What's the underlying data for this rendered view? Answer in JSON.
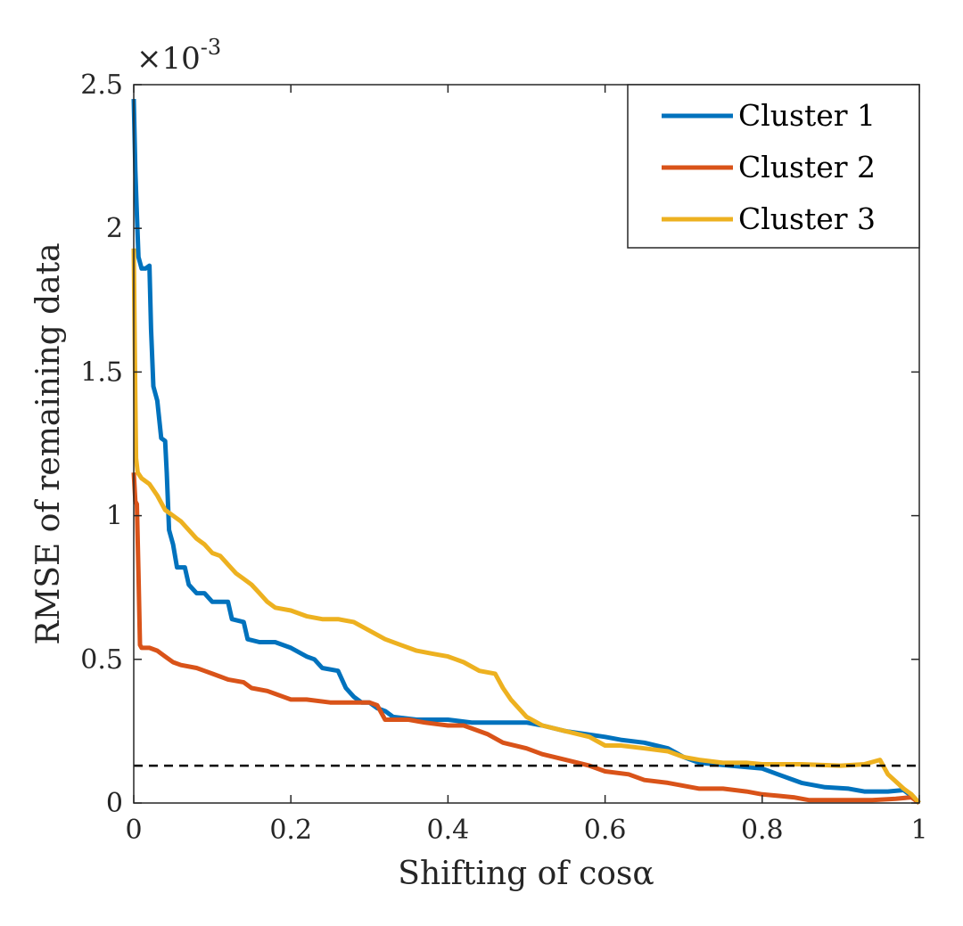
{
  "chart_data": {
    "type": "line",
    "title": "",
    "xlabel": "Shifting of cosα",
    "ylabel": "RMSE of remaining data",
    "y_scale_multiplier": "×10",
    "y_scale_exponent": "-3",
    "xlim": [
      0,
      1
    ],
    "ylim": [
      0,
      2.5
    ],
    "x_ticks": [
      0,
      0.2,
      0.4,
      0.6,
      0.8,
      1
    ],
    "x_tick_labels": [
      "0",
      "0.2",
      "0.4",
      "0.6",
      "0.8",
      "1"
    ],
    "y_ticks": [
      0,
      0.5,
      1,
      1.5,
      2,
      2.5
    ],
    "y_tick_labels": [
      "0",
      "0.5",
      "1",
      "1.5",
      "2",
      "2.5"
    ],
    "legend_position": "top-right",
    "threshold": {
      "value": 0.13,
      "style": "dashed",
      "color": "#000000"
    },
    "series": [
      {
        "name": "Cluster 1",
        "color": "#0072BD",
        "points": [
          [
            0,
            2.45
          ],
          [
            0.002,
            2.2
          ],
          [
            0.004,
            2.05
          ],
          [
            0.006,
            1.9
          ],
          [
            0.01,
            1.86
          ],
          [
            0.015,
            1.86
          ],
          [
            0.02,
            1.87
          ],
          [
            0.022,
            1.65
          ],
          [
            0.025,
            1.45
          ],
          [
            0.03,
            1.4
          ],
          [
            0.035,
            1.27
          ],
          [
            0.04,
            1.26
          ],
          [
            0.042,
            1.15
          ],
          [
            0.045,
            0.95
          ],
          [
            0.05,
            0.9
          ],
          [
            0.055,
            0.82
          ],
          [
            0.065,
            0.82
          ],
          [
            0.07,
            0.76
          ],
          [
            0.08,
            0.73
          ],
          [
            0.09,
            0.73
          ],
          [
            0.1,
            0.7
          ],
          [
            0.12,
            0.7
          ],
          [
            0.125,
            0.64
          ],
          [
            0.14,
            0.63
          ],
          [
            0.145,
            0.57
          ],
          [
            0.16,
            0.56
          ],
          [
            0.18,
            0.56
          ],
          [
            0.2,
            0.54
          ],
          [
            0.22,
            0.51
          ],
          [
            0.23,
            0.5
          ],
          [
            0.24,
            0.47
          ],
          [
            0.26,
            0.46
          ],
          [
            0.27,
            0.4
          ],
          [
            0.28,
            0.37
          ],
          [
            0.29,
            0.35
          ],
          [
            0.3,
            0.35
          ],
          [
            0.31,
            0.33
          ],
          [
            0.32,
            0.32
          ],
          [
            0.33,
            0.3
          ],
          [
            0.36,
            0.29
          ],
          [
            0.4,
            0.29
          ],
          [
            0.43,
            0.28
          ],
          [
            0.47,
            0.28
          ],
          [
            0.5,
            0.28
          ],
          [
            0.52,
            0.27
          ],
          [
            0.55,
            0.25
          ],
          [
            0.6,
            0.23
          ],
          [
            0.62,
            0.22
          ],
          [
            0.65,
            0.21
          ],
          [
            0.68,
            0.19
          ],
          [
            0.7,
            0.16
          ],
          [
            0.72,
            0.14
          ],
          [
            0.76,
            0.13
          ],
          [
            0.8,
            0.12
          ],
          [
            0.82,
            0.1
          ],
          [
            0.85,
            0.07
          ],
          [
            0.88,
            0.055
          ],
          [
            0.91,
            0.05
          ],
          [
            0.93,
            0.04
          ],
          [
            0.96,
            0.04
          ],
          [
            0.98,
            0.045
          ],
          [
            0.99,
            0.025
          ],
          [
            1,
            0.0
          ]
        ]
      },
      {
        "name": "Cluster 2",
        "color": "#D95319",
        "points": [
          [
            0,
            1.15
          ],
          [
            0.002,
            1.05
          ],
          [
            0.004,
            1.04
          ],
          [
            0.006,
            0.8
          ],
          [
            0.008,
            0.55
          ],
          [
            0.01,
            0.54
          ],
          [
            0.02,
            0.54
          ],
          [
            0.03,
            0.53
          ],
          [
            0.04,
            0.51
          ],
          [
            0.05,
            0.49
          ],
          [
            0.06,
            0.48
          ],
          [
            0.08,
            0.47
          ],
          [
            0.09,
            0.46
          ],
          [
            0.1,
            0.45
          ],
          [
            0.11,
            0.44
          ],
          [
            0.12,
            0.43
          ],
          [
            0.14,
            0.42
          ],
          [
            0.15,
            0.4
          ],
          [
            0.17,
            0.39
          ],
          [
            0.18,
            0.38
          ],
          [
            0.19,
            0.37
          ],
          [
            0.2,
            0.36
          ],
          [
            0.22,
            0.36
          ],
          [
            0.25,
            0.35
          ],
          [
            0.28,
            0.35
          ],
          [
            0.3,
            0.35
          ],
          [
            0.31,
            0.34
          ],
          [
            0.32,
            0.29
          ],
          [
            0.35,
            0.29
          ],
          [
            0.37,
            0.28
          ],
          [
            0.4,
            0.27
          ],
          [
            0.42,
            0.27
          ],
          [
            0.45,
            0.24
          ],
          [
            0.47,
            0.21
          ],
          [
            0.5,
            0.19
          ],
          [
            0.52,
            0.17
          ],
          [
            0.55,
            0.15
          ],
          [
            0.58,
            0.13
          ],
          [
            0.6,
            0.11
          ],
          [
            0.63,
            0.1
          ],
          [
            0.65,
            0.08
          ],
          [
            0.68,
            0.07
          ],
          [
            0.7,
            0.06
          ],
          [
            0.72,
            0.05
          ],
          [
            0.75,
            0.05
          ],
          [
            0.78,
            0.04
          ],
          [
            0.8,
            0.03
          ],
          [
            0.82,
            0.025
          ],
          [
            0.84,
            0.02
          ],
          [
            0.86,
            0.01
          ],
          [
            0.9,
            0.01
          ],
          [
            0.94,
            0.01
          ],
          [
            0.97,
            0.015
          ],
          [
            0.99,
            0.02
          ],
          [
            1,
            0.0
          ]
        ]
      },
      {
        "name": "Cluster 3",
        "color": "#EDB120",
        "points": [
          [
            0,
            1.93
          ],
          [
            0.002,
            1.4
          ],
          [
            0.003,
            1.2
          ],
          [
            0.005,
            1.15
          ],
          [
            0.01,
            1.13
          ],
          [
            0.02,
            1.11
          ],
          [
            0.03,
            1.07
          ],
          [
            0.04,
            1.02
          ],
          [
            0.05,
            1.0
          ],
          [
            0.06,
            0.98
          ],
          [
            0.07,
            0.95
          ],
          [
            0.08,
            0.92
          ],
          [
            0.09,
            0.9
          ],
          [
            0.1,
            0.87
          ],
          [
            0.11,
            0.86
          ],
          [
            0.12,
            0.83
          ],
          [
            0.13,
            0.8
          ],
          [
            0.14,
            0.78
          ],
          [
            0.15,
            0.76
          ],
          [
            0.16,
            0.73
          ],
          [
            0.17,
            0.7
          ],
          [
            0.18,
            0.68
          ],
          [
            0.2,
            0.67
          ],
          [
            0.22,
            0.65
          ],
          [
            0.24,
            0.64
          ],
          [
            0.26,
            0.64
          ],
          [
            0.28,
            0.63
          ],
          [
            0.3,
            0.6
          ],
          [
            0.32,
            0.57
          ],
          [
            0.34,
            0.55
          ],
          [
            0.36,
            0.53
          ],
          [
            0.38,
            0.52
          ],
          [
            0.4,
            0.51
          ],
          [
            0.42,
            0.49
          ],
          [
            0.44,
            0.46
          ],
          [
            0.46,
            0.45
          ],
          [
            0.47,
            0.4
          ],
          [
            0.48,
            0.36
          ],
          [
            0.5,
            0.3
          ],
          [
            0.52,
            0.27
          ],
          [
            0.55,
            0.25
          ],
          [
            0.58,
            0.23
          ],
          [
            0.6,
            0.2
          ],
          [
            0.62,
            0.2
          ],
          [
            0.65,
            0.19
          ],
          [
            0.68,
            0.18
          ],
          [
            0.7,
            0.16
          ],
          [
            0.72,
            0.15
          ],
          [
            0.75,
            0.14
          ],
          [
            0.78,
            0.14
          ],
          [
            0.8,
            0.135
          ],
          [
            0.85,
            0.135
          ],
          [
            0.9,
            0.13
          ],
          [
            0.93,
            0.135
          ],
          [
            0.95,
            0.15
          ],
          [
            0.96,
            0.1
          ],
          [
            0.98,
            0.05
          ],
          [
            0.99,
            0.03
          ],
          [
            1,
            0.0
          ]
        ]
      }
    ]
  }
}
